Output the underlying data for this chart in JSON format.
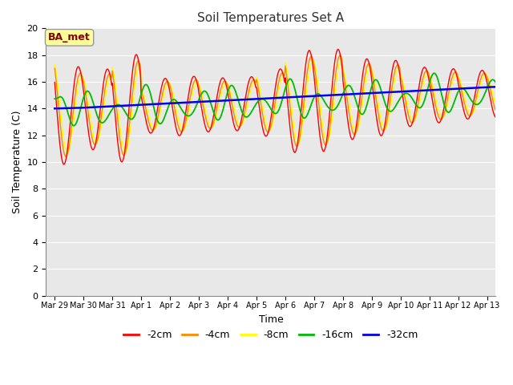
{
  "title": "Soil Temperatures Set A",
  "xlabel": "Time",
  "ylabel": "Soil Temperature (C)",
  "ylim": [
    0,
    20
  ],
  "yticks": [
    0,
    2,
    4,
    6,
    8,
    10,
    12,
    14,
    16,
    18,
    20
  ],
  "plot_bg": "#e8e8e8",
  "fig_bg": "#ffffff",
  "annotation_text": "BA_met",
  "annotation_color": "#8B0000",
  "annotation_bg": "#ffff99",
  "annotation_border": "#999999",
  "series_colors": {
    "-2cm": "#ff0000",
    "-4cm": "#ff8800",
    "-8cm": "#ffff00",
    "-16cm": "#00bb00",
    "-32cm": "#0000ee"
  },
  "x_tick_labels": [
    "Mar 29",
    "Mar 30",
    "Mar 31",
    "Apr 1",
    "Apr 2",
    "Apr 3",
    "Apr 4",
    "Apr 5",
    "Apr 6",
    "Apr 7",
    "Apr 8",
    "Apr 9",
    "Apr 10",
    "Apr 11",
    "Apr 12",
    "Apr 13"
  ],
  "n_days": 16,
  "pts_per_day": 48,
  "grid_color": "#ffffff",
  "linewidth_shallow": 1.0,
  "linewidth_deep": 1.3,
  "linewidth_32": 1.8
}
